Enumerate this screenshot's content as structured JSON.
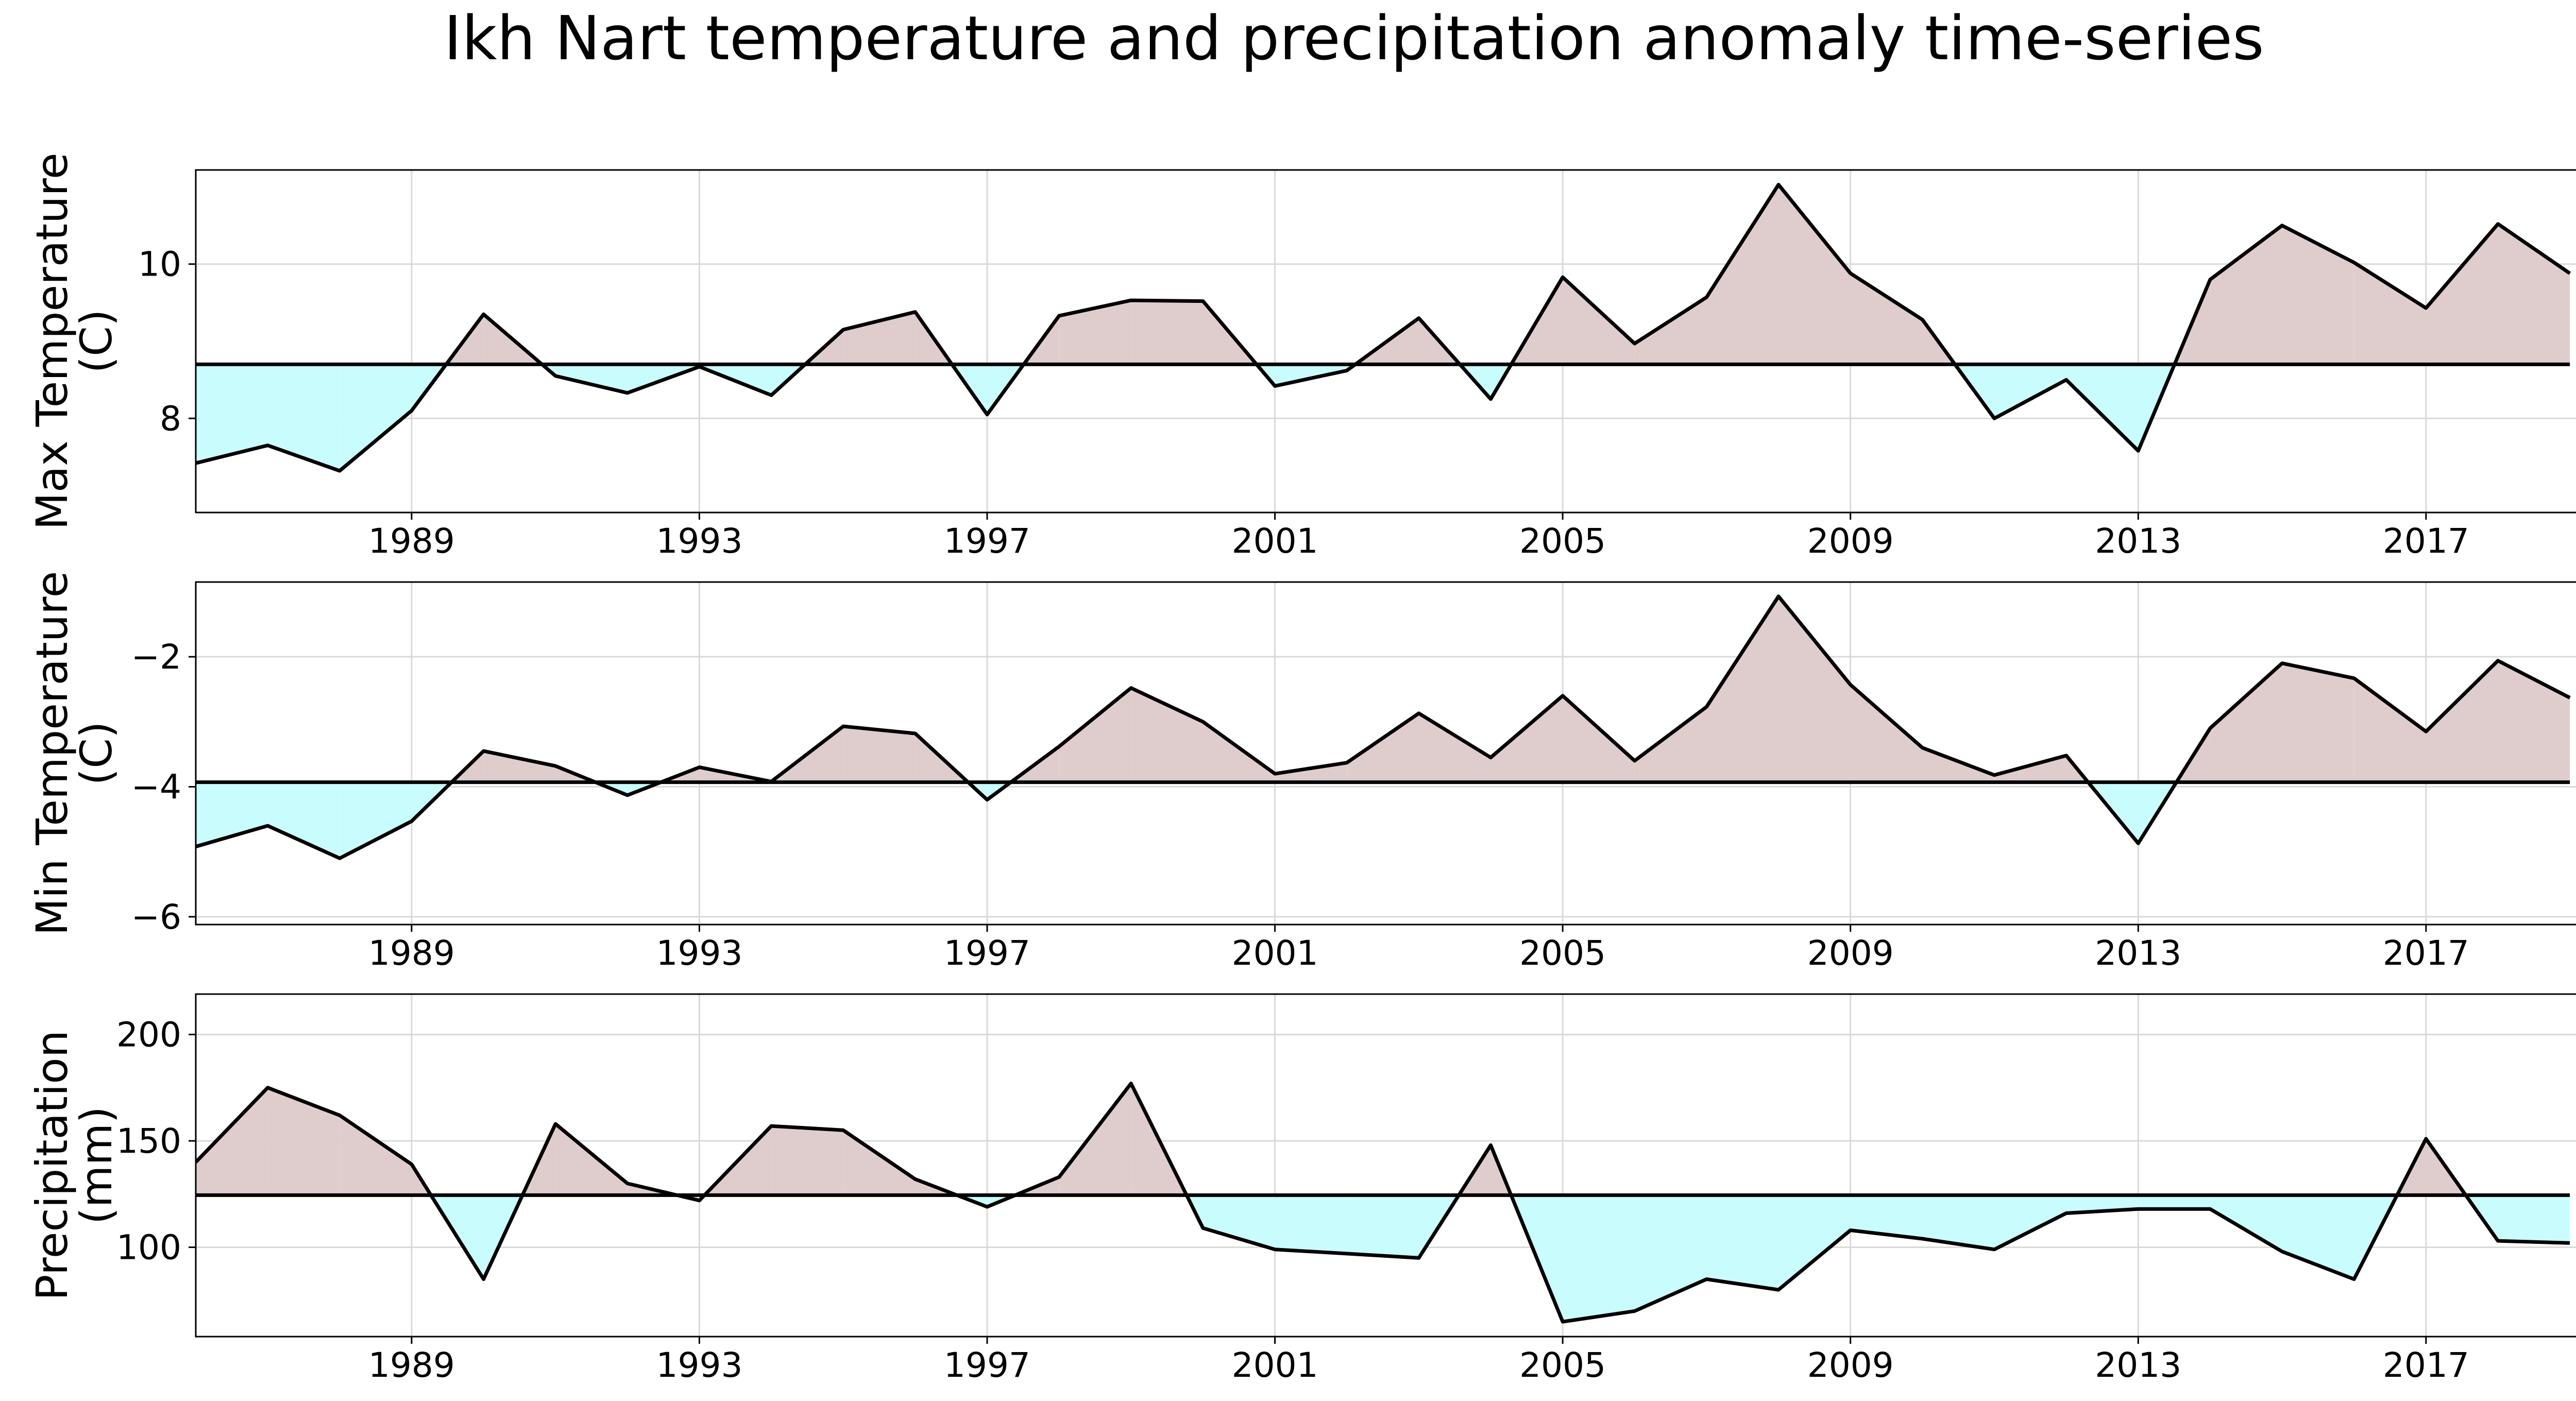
{
  "title": "Ikh Nart temperature and precipitation anomaly time-series",
  "colors": {
    "above_fill": "#dfcdcd",
    "below_fill": "#c9fdfd",
    "line": "#000000",
    "grid": "#d9d9d9"
  },
  "chart_data": [
    {
      "type": "area",
      "ylabel_lines": [
        "Max Temperature",
        "(C)"
      ],
      "x": [
        1986,
        1987,
        1988,
        1989,
        1990,
        1991,
        1992,
        1993,
        1994,
        1995,
        1996,
        1997,
        1998,
        1999,
        2000,
        2001,
        2002,
        2003,
        2004,
        2005,
        2006,
        2007,
        2008,
        2009,
        2010,
        2011,
        2012,
        2013,
        2014,
        2015,
        2016,
        2017,
        2018,
        2019
      ],
      "values": [
        7.42,
        7.65,
        7.32,
        8.1,
        9.35,
        8.55,
        8.33,
        8.67,
        8.3,
        9.15,
        9.38,
        8.05,
        9.33,
        9.53,
        9.52,
        8.42,
        8.62,
        9.3,
        8.25,
        9.83,
        8.97,
        9.57,
        11.03,
        9.88,
        9.28,
        8.0,
        8.5,
        7.58,
        9.8,
        10.5,
        10.02,
        9.43,
        10.52,
        9.88
      ],
      "baseline": 8.7,
      "xlim": [
        1986,
        2019.3
      ],
      "ylim": [
        6.78,
        11.22
      ],
      "xticks": [
        1989,
        1993,
        1997,
        2001,
        2005,
        2009,
        2013,
        2017
      ],
      "yticks": [
        8,
        10
      ]
    },
    {
      "type": "area",
      "ylabel_lines": [
        "Min Temperature",
        "(C)"
      ],
      "x": [
        1986,
        1987,
        1988,
        1989,
        1990,
        1991,
        1992,
        1993,
        1994,
        1995,
        1996,
        1997,
        1998,
        1999,
        2000,
        2001,
        2002,
        2003,
        2004,
        2005,
        2006,
        2007,
        2008,
        2009,
        2010,
        2011,
        2012,
        2013,
        2014,
        2015,
        2016,
        2017,
        2018,
        2019
      ],
      "values": [
        -4.92,
        -4.6,
        -5.1,
        -4.53,
        -3.45,
        -3.68,
        -4.13,
        -3.7,
        -3.92,
        -3.07,
        -3.18,
        -4.2,
        -3.38,
        -2.48,
        -3.0,
        -3.8,
        -3.63,
        -2.87,
        -3.55,
        -2.6,
        -3.6,
        -2.77,
        -1.07,
        -2.43,
        -3.4,
        -3.82,
        -3.52,
        -4.87,
        -3.1,
        -2.1,
        -2.33,
        -3.15,
        -2.06,
        -2.63
      ],
      "baseline": -3.93,
      "xlim": [
        1986,
        2019.3
      ],
      "ylim": [
        -6.12,
        -0.85
      ],
      "xticks": [
        1989,
        1993,
        1997,
        2001,
        2005,
        2009,
        2013,
        2017
      ],
      "yticks": [
        -6,
        -4,
        -2
      ]
    },
    {
      "type": "area",
      "ylabel_lines": [
        "Precipitation",
        "(mm)"
      ],
      "x": [
        1986,
        1987,
        1988,
        1989,
        1990,
        1991,
        1992,
        1993,
        1994,
        1995,
        1996,
        1997,
        1998,
        1999,
        2000,
        2001,
        2002,
        2003,
        2004,
        2005,
        2006,
        2007,
        2008,
        2009,
        2010,
        2011,
        2012,
        2013,
        2014,
        2015,
        2016,
        2017,
        2018,
        2019
      ],
      "values": [
        140,
        175,
        162,
        139,
        85,
        158,
        130,
        122,
        157,
        155,
        132,
        119,
        133,
        177,
        109,
        99,
        97,
        95,
        148,
        65,
        70,
        85,
        80,
        108,
        104,
        99,
        116,
        118,
        118,
        98,
        85,
        151,
        103,
        102
      ],
      "baseline": 124.5,
      "xlim": [
        1986,
        2019.3
      ],
      "ylim": [
        58,
        219
      ],
      "xticks": [
        1989,
        1993,
        1997,
        2001,
        2005,
        2009,
        2013,
        2017
      ],
      "yticks": [
        100,
        150,
        200
      ]
    }
  ]
}
